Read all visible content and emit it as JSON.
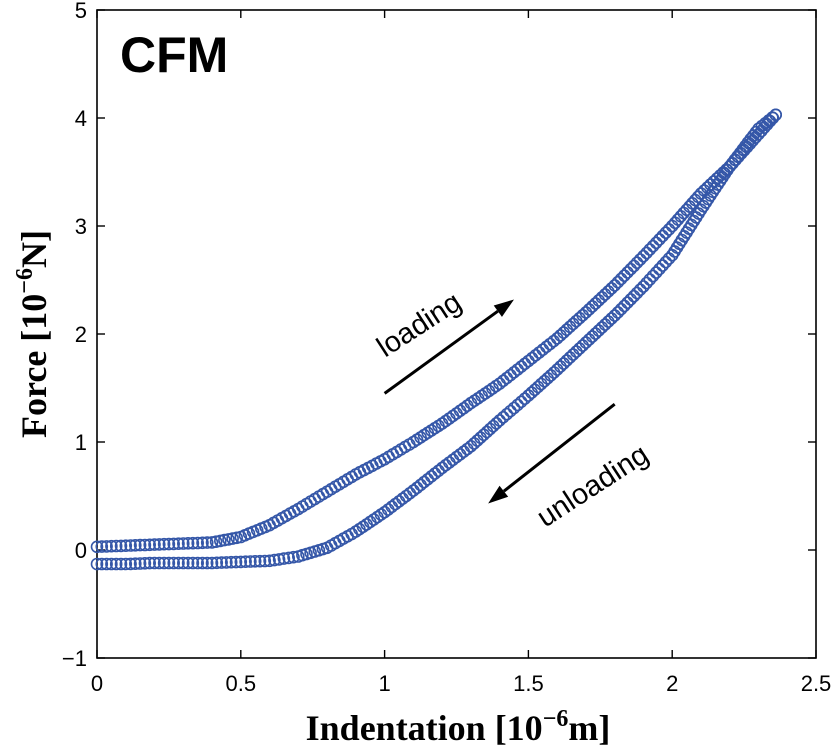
{
  "chart_data": {
    "type": "scatter",
    "panel_label": "CFM",
    "xlabel": {
      "main": "Indentation [10",
      "exp": "−6",
      "unit": "m]"
    },
    "ylabel": {
      "main": "Force [10",
      "exp": "−6",
      "unit": "N]"
    },
    "xlim": [
      0,
      2.5
    ],
    "ylim": [
      -1,
      5
    ],
    "xticks": [
      0,
      0.5,
      1,
      1.5,
      2,
      2.5
    ],
    "xtick_labels": [
      "0",
      "0.5",
      "1",
      "1.5",
      "2",
      "2.5"
    ],
    "yticks": [
      -1,
      0,
      1,
      2,
      3,
      4,
      5
    ],
    "ytick_labels": [
      "−1",
      "0",
      "1",
      "2",
      "3",
      "4",
      "5"
    ],
    "marker": "circle",
    "color": "#3557a8",
    "annotations": [
      {
        "text": "loading",
        "arrow_from": [
          1.0,
          1.45
        ],
        "arrow_to": [
          1.45,
          2.32
        ]
      },
      {
        "text": "unloading",
        "arrow_from": [
          1.8,
          1.35
        ],
        "arrow_to": [
          1.36,
          0.43
        ]
      }
    ],
    "series": [
      {
        "id": "loading",
        "x": [
          0,
          0.1,
          0.2,
          0.3,
          0.4,
          0.5,
          0.6,
          0.7,
          0.8,
          0.9,
          1.0,
          1.1,
          1.2,
          1.3,
          1.4,
          1.5,
          1.6,
          1.7,
          1.8,
          1.9,
          2.0,
          2.1,
          2.2,
          2.3,
          2.36
        ],
        "y": [
          0.03,
          0.04,
          0.05,
          0.06,
          0.07,
          0.12,
          0.23,
          0.38,
          0.54,
          0.7,
          0.84,
          1.0,
          1.17,
          1.36,
          1.54,
          1.75,
          1.96,
          2.2,
          2.45,
          2.72,
          3.0,
          3.3,
          3.55,
          3.85,
          4.03
        ]
      },
      {
        "id": "unloading",
        "x": [
          2.36,
          2.3,
          2.2,
          2.1,
          2.0,
          1.9,
          1.8,
          1.7,
          1.6,
          1.5,
          1.4,
          1.3,
          1.2,
          1.1,
          1.0,
          0.9,
          0.8,
          0.7,
          0.6,
          0.5,
          0.4,
          0.3,
          0.2,
          0.1,
          0
        ],
        "y": [
          4.03,
          3.9,
          3.55,
          3.15,
          2.73,
          2.44,
          2.17,
          1.92,
          1.67,
          1.43,
          1.2,
          0.96,
          0.76,
          0.55,
          0.35,
          0.17,
          0.02,
          -0.06,
          -0.1,
          -0.11,
          -0.12,
          -0.12,
          -0.12,
          -0.13,
          -0.13
        ]
      }
    ]
  }
}
